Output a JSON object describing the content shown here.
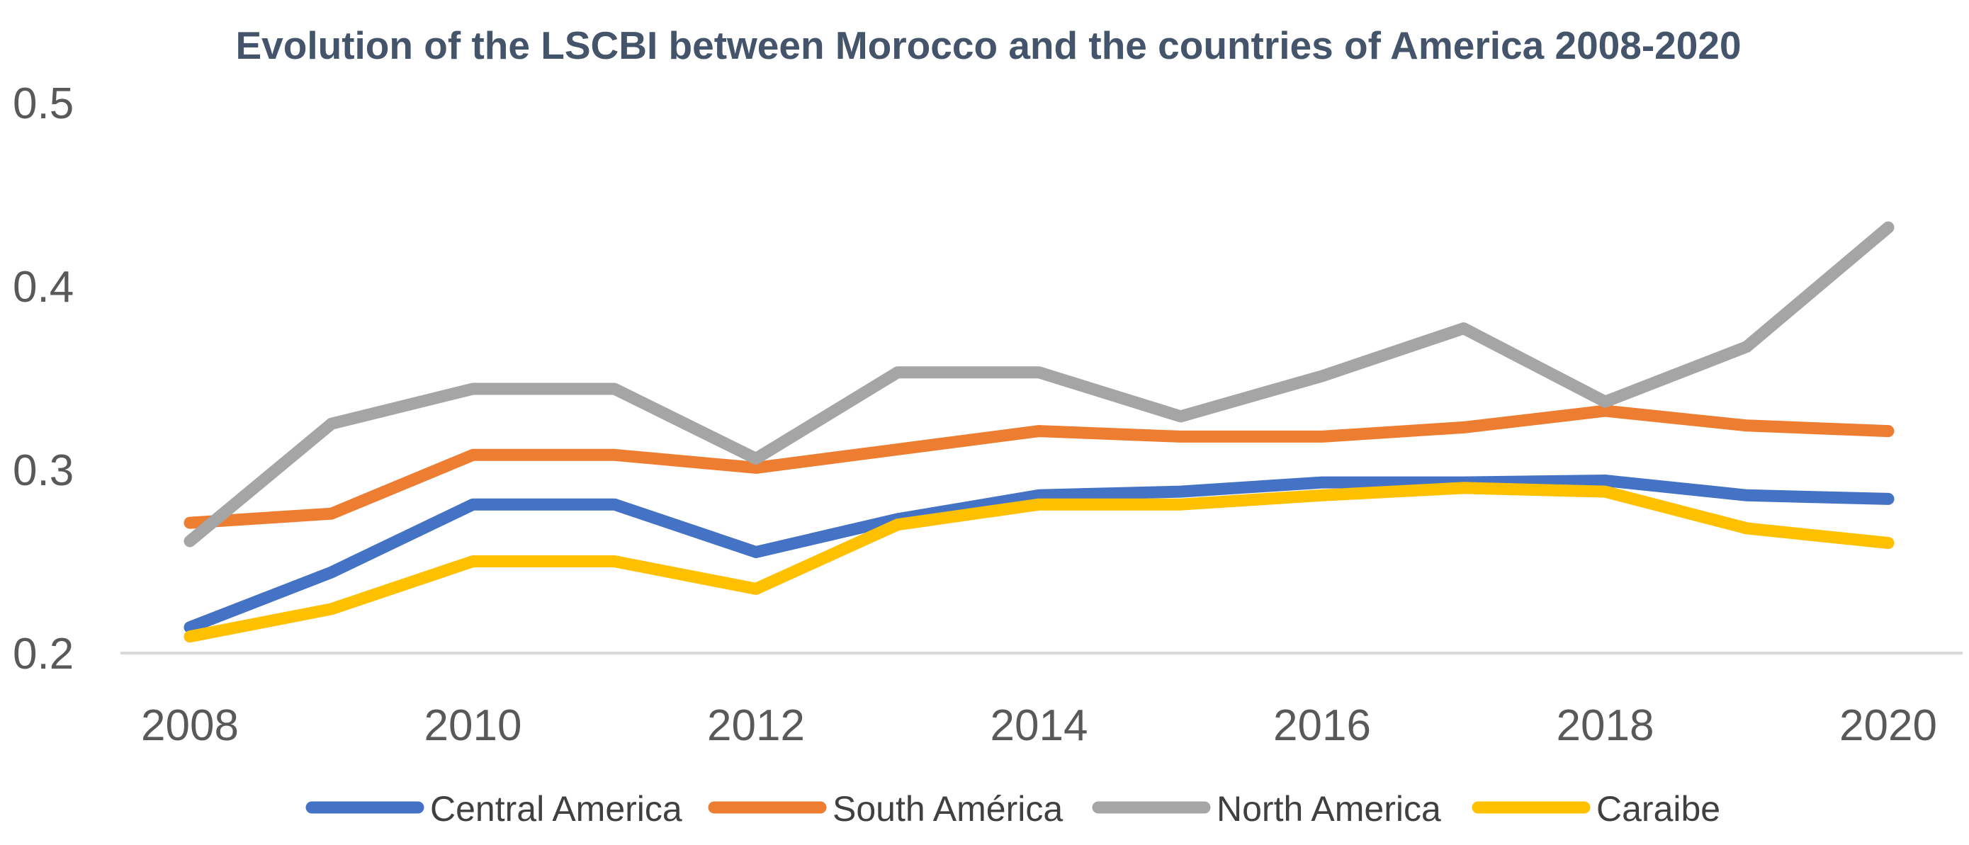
{
  "chart_data": {
    "type": "line",
    "title": "Evolution of the LSCBI between Morocco and the countries of America 2008-2020",
    "xlabel": "",
    "ylabel": "",
    "x": [
      2008,
      2009,
      2010,
      2011,
      2012,
      2013,
      2014,
      2015,
      2016,
      2017,
      2018,
      2019,
      2020
    ],
    "xticks": [
      "2008",
      "2010",
      "2012",
      "2014",
      "2016",
      "2018",
      "2020"
    ],
    "yticks": [
      "0.2",
      "0.3",
      "0.4",
      "0.5"
    ],
    "ylim": [
      0.2,
      0.5
    ],
    "grid": false,
    "legend_position": "bottom",
    "series": [
      {
        "name": "Central America",
        "color": "#4472c4",
        "values": [
          0.214,
          0.244,
          0.281,
          0.281,
          0.255,
          0.273,
          0.286,
          0.288,
          0.293,
          0.293,
          0.294,
          0.286,
          0.284
        ]
      },
      {
        "name": "South América",
        "color": "#ed7d31",
        "values": [
          0.271,
          0.276,
          0.308,
          0.308,
          0.301,
          0.311,
          0.321,
          0.318,
          0.318,
          0.323,
          0.332,
          0.324,
          0.321
        ]
      },
      {
        "name": "North America",
        "color": "#a5a5a5",
        "values": [
          0.261,
          0.325,
          0.344,
          0.344,
          0.306,
          0.353,
          0.353,
          0.329,
          0.351,
          0.377,
          0.337,
          0.367,
          0.432
        ]
      },
      {
        "name": "Caraibe",
        "color": "#ffc000",
        "values": [
          0.209,
          0.224,
          0.25,
          0.25,
          0.235,
          0.27,
          0.281,
          0.281,
          0.286,
          0.29,
          0.288,
          0.268,
          0.26
        ]
      }
    ]
  }
}
